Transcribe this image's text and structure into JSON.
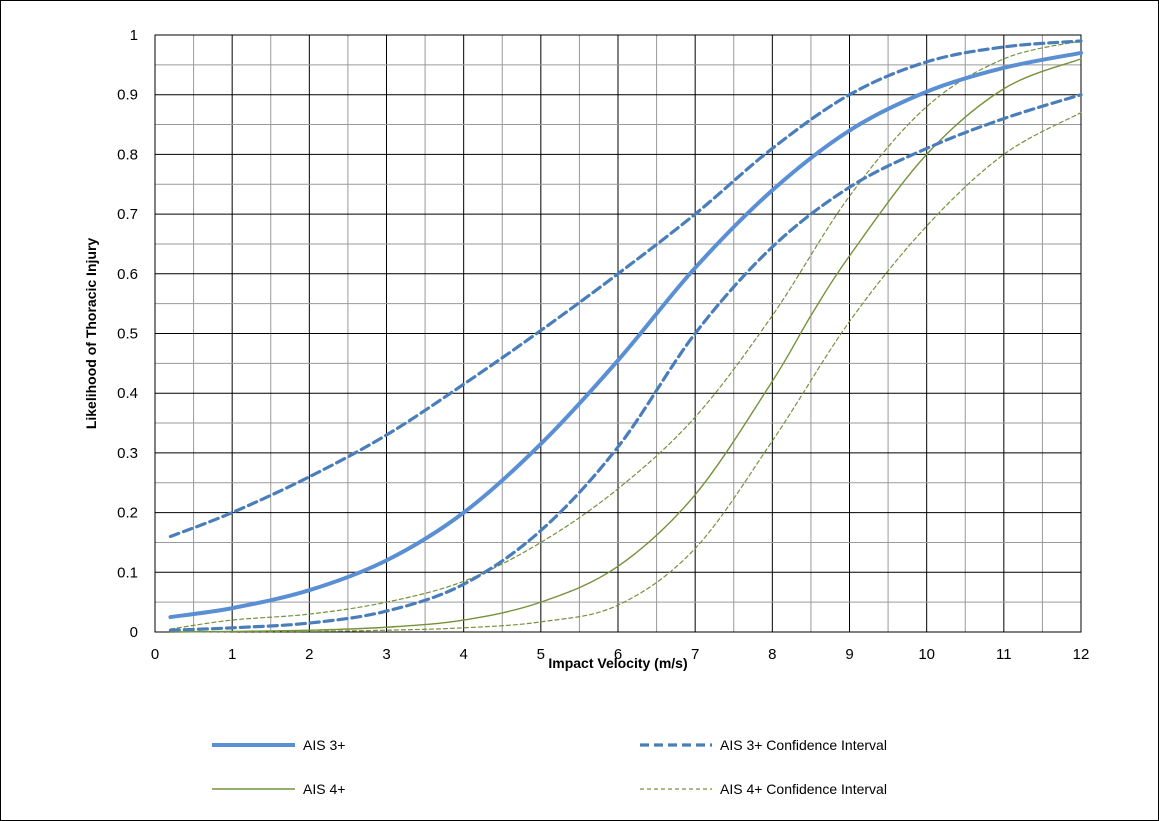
{
  "chart_data": {
    "type": "line",
    "title": "",
    "xlabel": "Impact Velocity (m/s)",
    "ylabel": "Likelihood of  Thoracic Injury",
    "xlim": [
      0,
      12
    ],
    "ylim": [
      0,
      1
    ],
    "x_ticks": [
      0,
      1,
      2,
      3,
      4,
      5,
      6,
      7,
      8,
      9,
      10,
      11,
      12
    ],
    "x_tick_labels": [
      "0",
      "1",
      "2",
      "3",
      "4",
      "5",
      "6",
      "7",
      "8",
      "9",
      "10",
      "11",
      "12"
    ],
    "y_ticks": [
      0,
      0.1,
      0.2,
      0.3,
      0.4,
      0.5,
      0.6,
      0.7,
      0.8,
      0.9,
      1
    ],
    "y_tick_labels": [
      "0",
      "0.1",
      "0.2",
      "0.3",
      "0.4",
      "0.5",
      "0.6",
      "0.7",
      "0.8",
      "0.9",
      "1"
    ],
    "grid": true,
    "legend_position": "bottom",
    "series": [
      {
        "name": "AIS 3+",
        "color": "#5B8FD4",
        "style": "solid-thick",
        "x": [
          0.2,
          1,
          2,
          3,
          4,
          5,
          6,
          7,
          8,
          9,
          10,
          11,
          12
        ],
        "y": [
          0.025,
          0.04,
          0.07,
          0.12,
          0.2,
          0.315,
          0.455,
          0.61,
          0.74,
          0.84,
          0.905,
          0.945,
          0.97
        ]
      },
      {
        "name": "AIS 3+ Confidence Interval",
        "color": "#4A7EBB",
        "style": "dashed-thick",
        "x": [
          0.2,
          1,
          2,
          3,
          4,
          5,
          6,
          7,
          8,
          9,
          10,
          11,
          12
        ],
        "y": [
          0.16,
          0.2,
          0.26,
          0.33,
          0.415,
          0.505,
          0.6,
          0.7,
          0.81,
          0.9,
          0.955,
          0.98,
          0.99
        ]
      },
      {
        "name": "",
        "color": "#4A7EBB",
        "style": "dashed-thick",
        "x": [
          0.2,
          1,
          2,
          3,
          4,
          5,
          6,
          7,
          8,
          9,
          10,
          11,
          12
        ],
        "y": [
          0.003,
          0.007,
          0.015,
          0.035,
          0.08,
          0.17,
          0.31,
          0.5,
          0.645,
          0.745,
          0.81,
          0.86,
          0.9
        ]
      },
      {
        "name": "AIS 4+",
        "color": "#76923C",
        "style": "solid-thin",
        "x": [
          0.2,
          1,
          2,
          3,
          4,
          5,
          6,
          7,
          8,
          8.5,
          9,
          10,
          11,
          12
        ],
        "y": [
          0,
          0.001,
          0.003,
          0.008,
          0.02,
          0.05,
          0.11,
          0.23,
          0.42,
          0.53,
          0.63,
          0.8,
          0.91,
          0.96
        ]
      },
      {
        "name": "AIS 4+ Confidence Interval",
        "color": "#76923C",
        "style": "dashed-thin",
        "x": [
          0.2,
          1,
          2,
          3,
          4,
          5,
          6,
          7,
          8,
          9,
          10,
          11,
          12
        ],
        "y": [
          0.005,
          0.02,
          0.03,
          0.05,
          0.085,
          0.15,
          0.24,
          0.36,
          0.53,
          0.73,
          0.88,
          0.96,
          0.99
        ]
      },
      {
        "name": "",
        "color": "#76923C",
        "style": "dashed-thin",
        "x": [
          0.2,
          1,
          2,
          3,
          4,
          5,
          6,
          7,
          8,
          9,
          10,
          11,
          12
        ],
        "y": [
          0,
          0.0005,
          0.001,
          0.003,
          0.007,
          0.017,
          0.045,
          0.14,
          0.32,
          0.52,
          0.68,
          0.8,
          0.87
        ]
      }
    ],
    "legend": [
      {
        "label": "AIS 3+",
        "color": "#5B8FD4",
        "style": "solid-thick"
      },
      {
        "label": "AIS 3+ Confidence Interval",
        "color": "#4A7EBB",
        "style": "dashed-thick"
      },
      {
        "label": "AIS 4+",
        "color": "#76923C",
        "style": "solid-thin"
      },
      {
        "label": "AIS 4+ Confidence Interval",
        "color": "#76923C",
        "style": "dashed-thin"
      }
    ]
  }
}
